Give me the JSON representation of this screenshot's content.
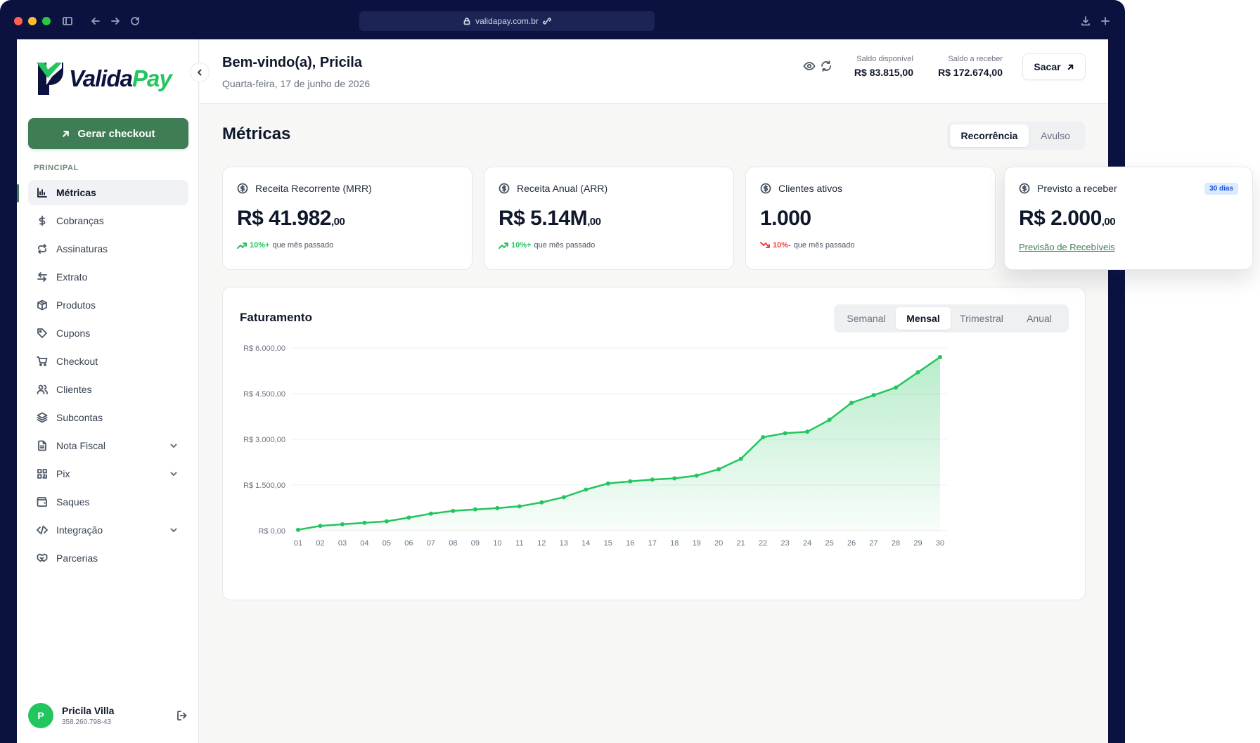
{
  "browser": {
    "url": "validapay.com.br"
  },
  "sidebar": {
    "logo": {
      "part1": "Valida",
      "part2": "Pay"
    },
    "checkout_button": "Gerar checkout",
    "section_label": "PRINCIPAL",
    "items": [
      {
        "label": "Métricas",
        "icon": "bar-chart-icon",
        "active": true
      },
      {
        "label": "Cobranças",
        "icon": "dollar-icon"
      },
      {
        "label": "Assinaturas",
        "icon": "repeat-icon"
      },
      {
        "label": "Extrato",
        "icon": "arrows-swap-icon"
      },
      {
        "label": "Produtos",
        "icon": "package-icon"
      },
      {
        "label": "Cupons",
        "icon": "tag-icon"
      },
      {
        "label": "Checkout",
        "icon": "cart-icon"
      },
      {
        "label": "Clientes",
        "icon": "users-icon"
      },
      {
        "label": "Subcontas",
        "icon": "layers-icon"
      },
      {
        "label": "Nota Fiscal",
        "icon": "file-text-icon",
        "has_submenu": true
      },
      {
        "label": "Pix",
        "icon": "qr-code-icon",
        "has_submenu": true
      },
      {
        "label": "Saques",
        "icon": "wallet-icon"
      },
      {
        "label": "Integração",
        "icon": "code-icon",
        "has_submenu": true
      },
      {
        "label": "Parcerias",
        "icon": "handshake-icon"
      }
    ],
    "user": {
      "initial": "P",
      "name": "Pricila Villa",
      "document": "358.260.798-43"
    }
  },
  "header": {
    "welcome": "Bem-vindo(a), Pricila",
    "date": "Quarta-feira, 17 de junho de 2026",
    "balance_available_label": "Saldo disponível",
    "balance_available_value": "R$ 83.815,00",
    "balance_receivable_label": "Saldo a receber",
    "balance_receivable_value": "R$ 172.674,00",
    "withdraw_button": "Sacar"
  },
  "main": {
    "title": "Métricas",
    "segment": {
      "options": [
        "Recorrência",
        "Avulso"
      ],
      "selected": "Recorrência"
    },
    "cards": [
      {
        "title": "Receita Recorrente (MRR)",
        "value": "R$ 41.982",
        "cents": ",00",
        "delta": "10%+",
        "delta_text": "que mês passado",
        "trend": "up"
      },
      {
        "title": "Receita Anual (ARR)",
        "value": "R$ 5.14M",
        "cents": ",00",
        "delta": "10%+",
        "delta_text": "que mês passado",
        "trend": "up"
      },
      {
        "title": "Clientes ativos",
        "value": "1.000",
        "cents": "",
        "delta": "10%-",
        "delta_text": "que mês passado",
        "trend": "down"
      },
      {
        "title": "Previsto a receber",
        "value": "R$ 2.000",
        "cents": ",00",
        "badge": "30 dias",
        "link": "Previsão de Recebíveis"
      }
    ],
    "chart_section": {
      "title": "Faturamento",
      "periods": [
        "Semanal",
        "Mensal",
        "Trimestral",
        "Anual"
      ],
      "selected_period": "Mensal"
    }
  },
  "colors": {
    "accent": "#3f7d55",
    "line": "#22c55e",
    "navy": "#0b1240"
  },
  "chart_data": {
    "type": "area",
    "title": "Faturamento",
    "x": [
      "01",
      "02",
      "03",
      "04",
      "05",
      "06",
      "07",
      "08",
      "09",
      "10",
      "11",
      "12",
      "13",
      "14",
      "15",
      "16",
      "17",
      "18",
      "19",
      "20",
      "21",
      "22",
      "23",
      "24",
      "25",
      "26",
      "27",
      "28",
      "29",
      "30"
    ],
    "series": [
      {
        "values": [
          30,
          160,
          210,
          260,
          310,
          430,
          560,
          650,
          700,
          740,
          800,
          930,
          1100,
          1350,
          1550,
          1620,
          1680,
          1720,
          1810,
          2020,
          2360,
          3070,
          3200,
          3250,
          3640,
          4200,
          4450,
          4700,
          5200,
          5700
        ]
      }
    ],
    "ylim": [
      0,
      6000
    ],
    "yticks": [
      0,
      1500,
      3000,
      4500,
      6000
    ],
    "ytick_labels": [
      "R$ 0,00",
      "R$ 1.500,00",
      "R$ 3.000,00",
      "R$ 4.500,00",
      "R$ 6.000,00"
    ],
    "grid": true
  }
}
